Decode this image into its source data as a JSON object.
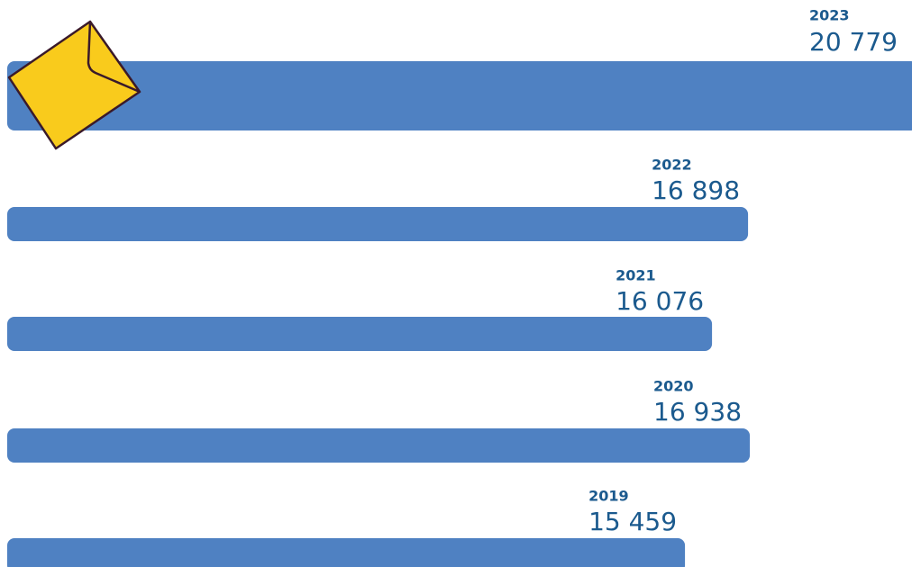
{
  "chart_data": {
    "type": "bar",
    "orientation": "horizontal",
    "categories": [
      "2023",
      "2022",
      "2021",
      "2020",
      "2019"
    ],
    "values": [
      20779,
      16898,
      16076,
      16938,
      15459
    ],
    "value_labels": [
      "20 779",
      "16 898",
      "16 076",
      "16 938",
      "15 459"
    ],
    "color": "#4f81c2"
  }
}
